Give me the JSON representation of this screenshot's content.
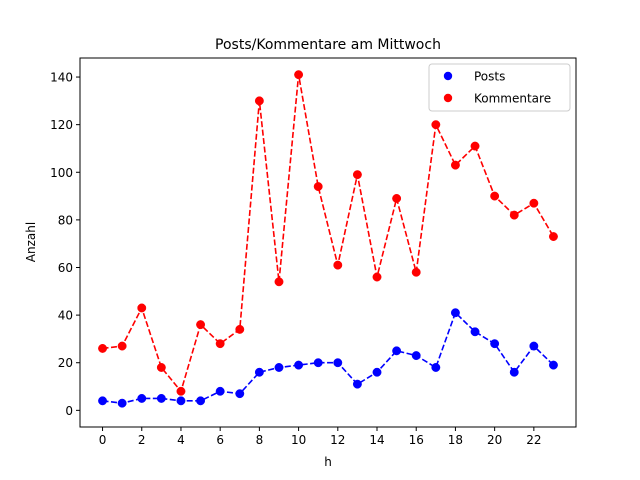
{
  "chart_data": {
    "type": "line",
    "title": "Posts/Kommentare am Mittwoch",
    "xlabel": "h",
    "ylabel": "Anzahl",
    "xlim": [
      -1.15,
      24.15
    ],
    "ylim": [
      -7,
      148
    ],
    "x": [
      0,
      1,
      2,
      3,
      4,
      5,
      6,
      7,
      8,
      9,
      10,
      11,
      12,
      13,
      14,
      15,
      16,
      17,
      18,
      19,
      20,
      21,
      22,
      23
    ],
    "xticks": [
      "0",
      "2",
      "4",
      "6",
      "8",
      "10",
      "12",
      "14",
      "16",
      "18",
      "20",
      "22"
    ],
    "yticks": [
      "0",
      "20",
      "40",
      "60",
      "80",
      "100",
      "120",
      "140"
    ],
    "legend_position": "top-right",
    "grid": false,
    "series": [
      {
        "name": "Posts",
        "color": "#0000ff",
        "style": "dashed-line-with-circle-markers",
        "values": [
          4,
          3,
          5,
          5,
          4,
          4,
          8,
          7,
          16,
          18,
          19,
          20,
          20,
          11,
          16,
          25,
          23,
          18,
          41,
          33,
          28,
          16,
          27,
          19
        ]
      },
      {
        "name": "Kommentare",
        "color": "#ff0000",
        "style": "dashed-line-with-circle-markers",
        "values": [
          26,
          27,
          43,
          18,
          8,
          36,
          28,
          34,
          130,
          54,
          141,
          94,
          61,
          99,
          56,
          89,
          58,
          120,
          103,
          111,
          90,
          82,
          87,
          73
        ]
      }
    ]
  }
}
